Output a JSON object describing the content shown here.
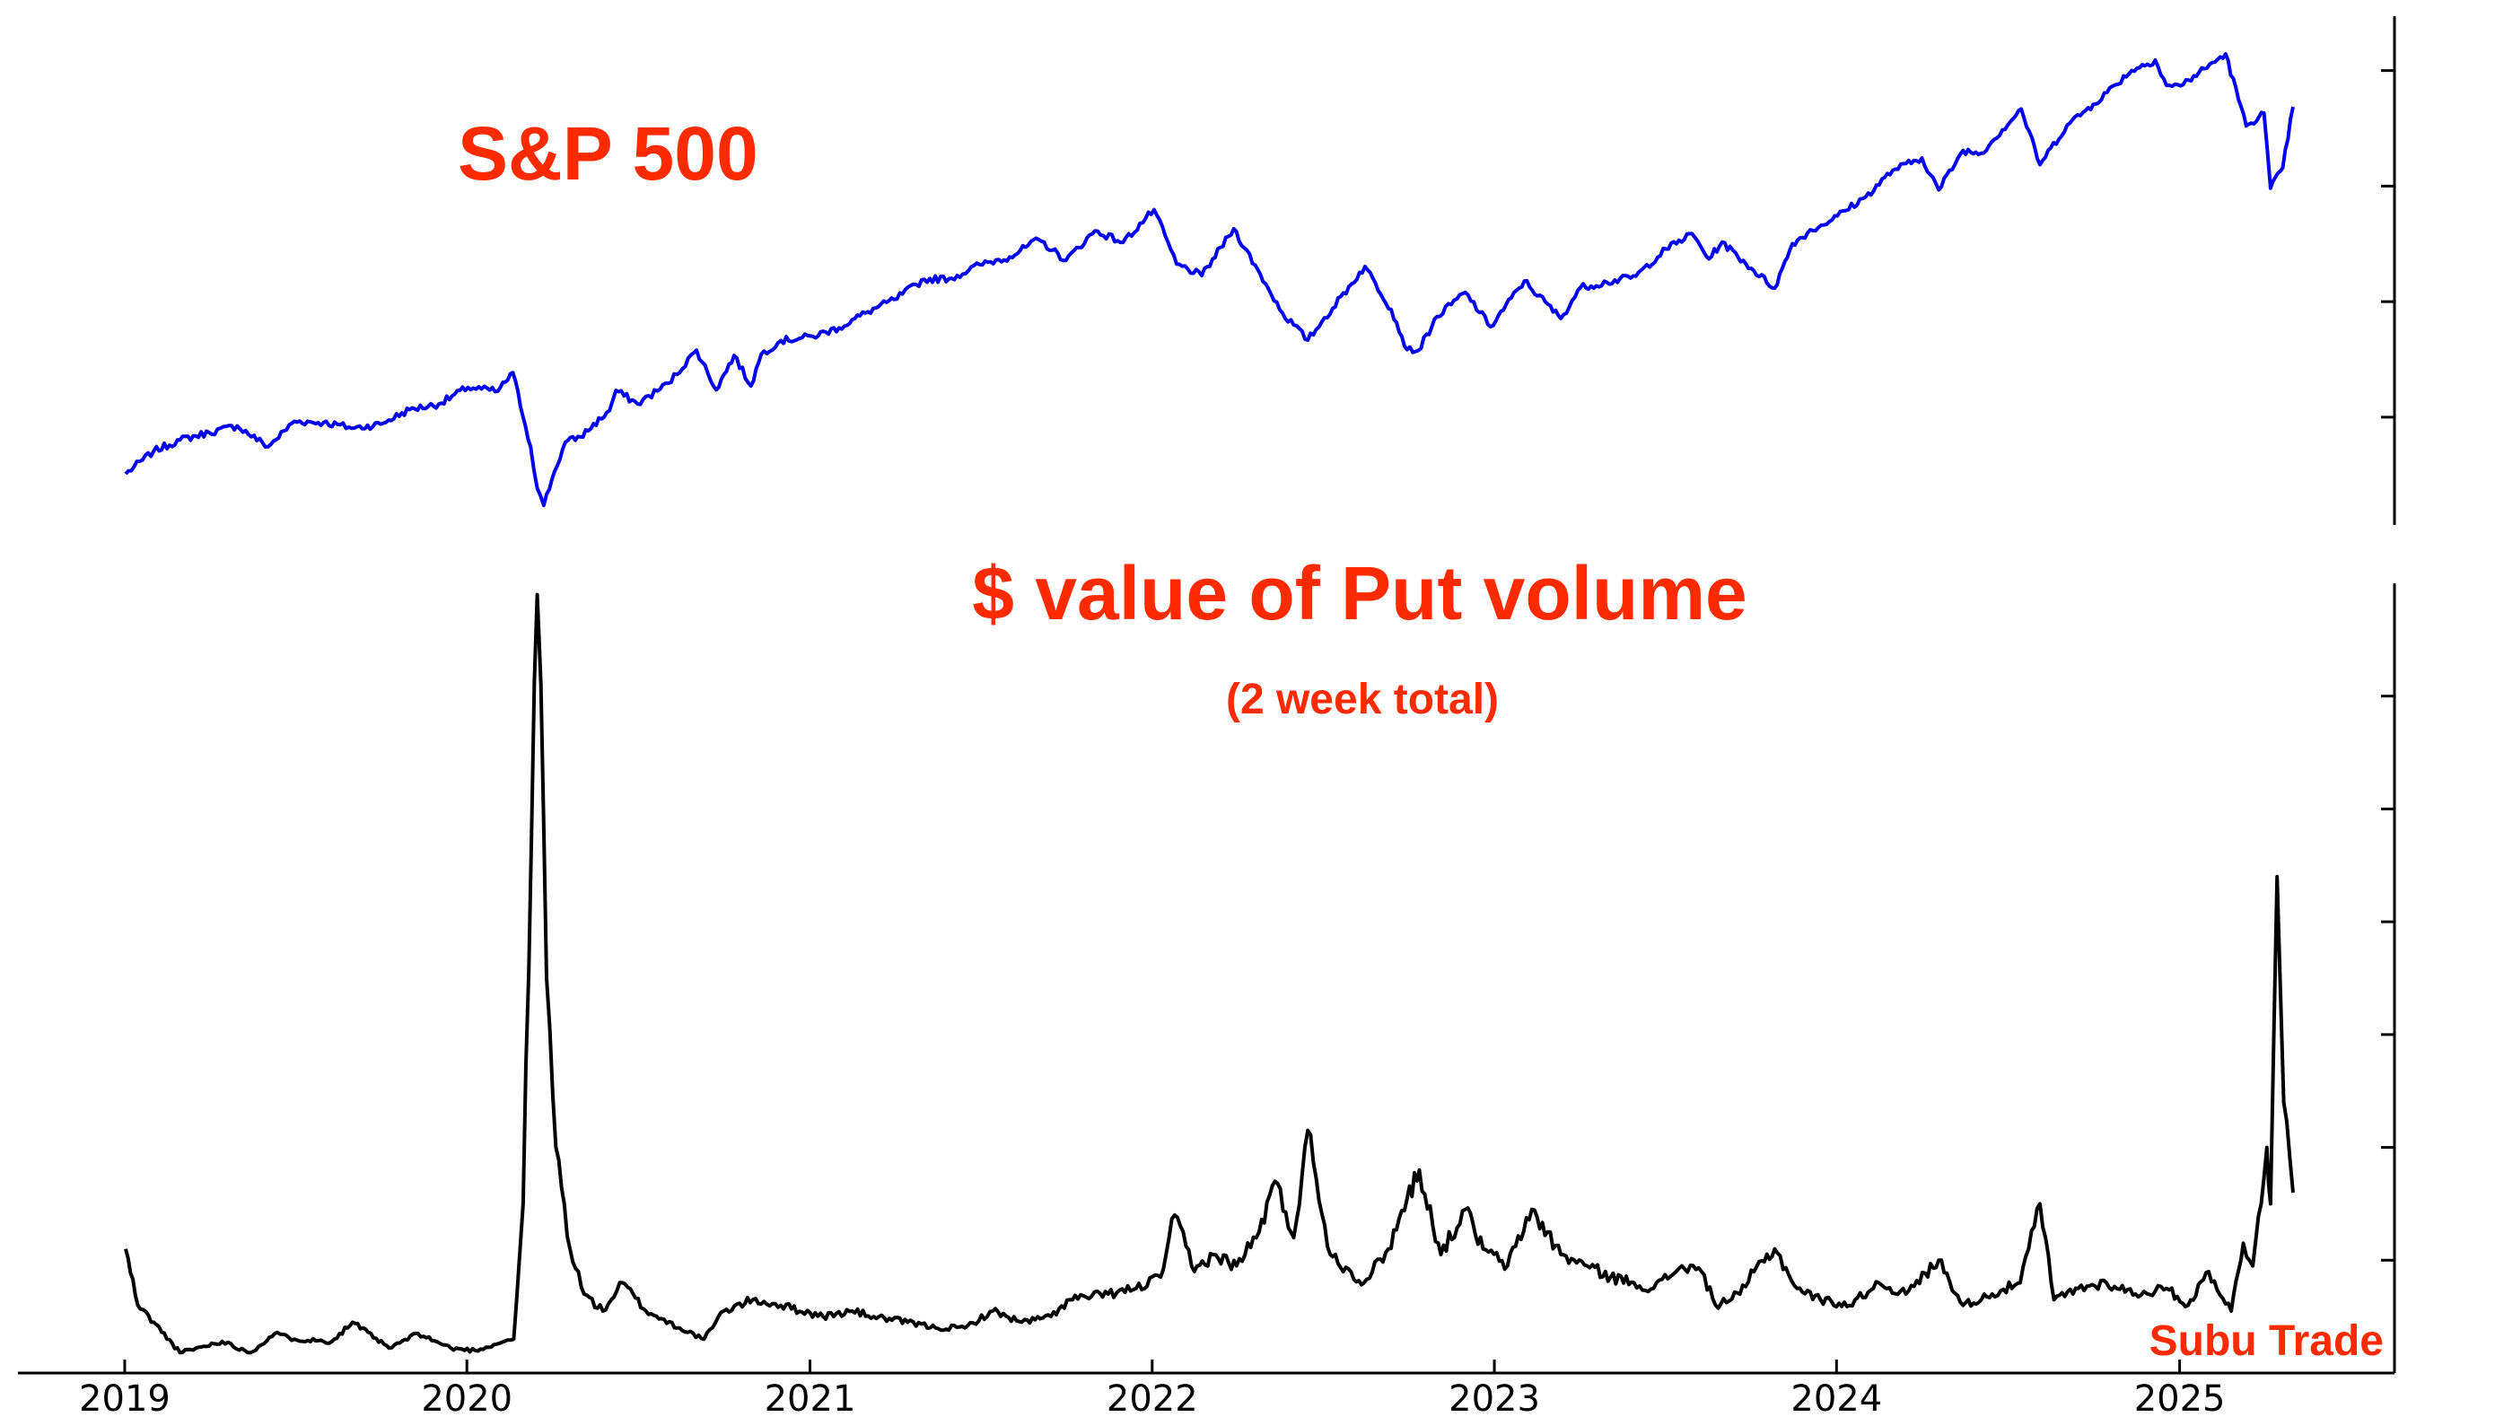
{
  "chart_data": [
    {
      "type": "line",
      "title": "S&P 500",
      "xlabel": "",
      "ylabel": "",
      "x_start": "2019-01-02",
      "x_end": "2025-05-02",
      "ylim": [
        2300,
        6300
      ],
      "grid": false,
      "series": [
        {
          "color": "#0000ee",
          "x": [
            "2019-01-02",
            "2019-02-01",
            "2019-03-01",
            "2019-04-01",
            "2019-05-01",
            "2019-06-03",
            "2019-07-01",
            "2019-08-01",
            "2019-09-03",
            "2019-10-01",
            "2019-11-01",
            "2019-12-02",
            "2020-01-02",
            "2020-02-03",
            "2020-02-19",
            "2020-03-09",
            "2020-03-16",
            "2020-03-23",
            "2020-04-01",
            "2020-04-15",
            "2020-05-01",
            "2020-06-01",
            "2020-06-08",
            "2020-07-01",
            "2020-08-03",
            "2020-09-02",
            "2020-09-23",
            "2020-10-12",
            "2020-10-30",
            "2020-11-10",
            "2020-12-01",
            "2021-01-04",
            "2021-02-01",
            "2021-03-01",
            "2021-04-01",
            "2021-05-03",
            "2021-06-01",
            "2021-07-01",
            "2021-08-02",
            "2021-09-02",
            "2021-10-01",
            "2021-11-01",
            "2021-12-01",
            "2022-01-03",
            "2022-01-27",
            "2022-02-23",
            "2022-03-29",
            "2022-05-02",
            "2022-05-20",
            "2022-06-16",
            "2022-07-01",
            "2022-08-16",
            "2022-09-13",
            "2022-09-30",
            "2022-10-12",
            "2022-11-01",
            "2022-12-01",
            "2022-12-28",
            "2023-02-02",
            "2023-03-13",
            "2023-04-03",
            "2023-05-01",
            "2023-06-01",
            "2023-07-03",
            "2023-07-31",
            "2023-08-18",
            "2023-09-01",
            "2023-10-02",
            "2023-10-27",
            "2023-11-15",
            "2023-12-01",
            "2024-01-02",
            "2024-02-01",
            "2024-03-01",
            "2024-04-01",
            "2024-04-19",
            "2024-05-15",
            "2024-06-03",
            "2024-07-16",
            "2024-08-05",
            "2024-09-03",
            "2024-10-01",
            "2024-11-11",
            "2024-12-06",
            "2024-12-18",
            "2025-01-02",
            "2025-02-19",
            "2025-03-13",
            "2025-04-01",
            "2025-04-08",
            "2025-04-21",
            "2025-05-02"
          ],
          "values": [
            2510,
            2706,
            2803,
            2867,
            2924,
            2744,
            2964,
            2953,
            2906,
            2940,
            3066,
            3113,
            3258,
            3225,
            3386,
            2746,
            2386,
            2237,
            2470,
            2783,
            2830,
            3055,
            3232,
            3115,
            3294,
            3580,
            3237,
            3534,
            3270,
            3545,
            3662,
            3700,
            3773,
            3901,
            4019,
            4192,
            4202,
            4320,
            4387,
            4537,
            4357,
            4613,
            4513,
            4796,
            4326,
            4225,
            4631,
            4155,
            3901,
            3667,
            3825,
            4305,
            3932,
            3585,
            3577,
            3871,
            4080,
            3783,
            4179,
            3855,
            4124,
            4167,
            4221,
            4455,
            4588,
            4370,
            4515,
            4288,
            4117,
            4502,
            4594,
            4742,
            4906,
            5137,
            5243,
            4967,
            5308,
            5283,
            5667,
            5186,
            5528,
            5708,
            6001,
            6090,
            5872,
            5868,
            6144,
            5521,
            5633,
            4982,
            5158,
            5686
          ]
        }
      ]
    },
    {
      "type": "line",
      "title": "$ value of Put volume",
      "subtitle": "(2 week total)",
      "xlabel": "",
      "ylabel": "",
      "x_start": "2019-01-02",
      "x_end": "2025-05-02",
      "x_ticks": [
        "2019",
        "2020",
        "2021",
        "2022",
        "2023",
        "2024",
        "2025"
      ],
      "ylim": [
        0,
        7
      ],
      "grid": false,
      "annotations": [
        "Subu Trade"
      ],
      "series": [
        {
          "color": "#000000",
          "x": [
            "2019-01-02",
            "2019-01-15",
            "2019-02-01",
            "2019-03-01",
            "2019-04-15",
            "2019-05-15",
            "2019-06-10",
            "2019-07-01",
            "2019-08-10",
            "2019-09-01",
            "2019-10-10",
            "2019-11-10",
            "2019-12-15",
            "2020-01-10",
            "2020-02-10",
            "2020-02-20",
            "2020-03-01",
            "2020-03-10",
            "2020-03-16",
            "2020-03-20",
            "2020-03-26",
            "2020-04-05",
            "2020-04-20",
            "2020-05-05",
            "2020-05-25",
            "2020-06-15",
            "2020-07-10",
            "2020-08-15",
            "2020-09-10",
            "2020-10-01",
            "2020-11-01",
            "2020-12-01",
            "2021-01-15",
            "2021-02-15",
            "2021-03-10",
            "2021-04-15",
            "2021-05-15",
            "2021-06-15",
            "2021-07-15",
            "2021-08-15",
            "2021-09-15",
            "2021-10-05",
            "2021-11-15",
            "2021-12-15",
            "2022-01-10",
            "2022-01-25",
            "2022-02-15",
            "2022-03-07",
            "2022-04-01",
            "2022-04-25",
            "2022-05-12",
            "2022-06-01",
            "2022-06-16",
            "2022-07-10",
            "2022-08-15",
            "2022-09-10",
            "2022-09-30",
            "2022-10-13",
            "2022-11-05",
            "2022-12-01",
            "2022-12-20",
            "2023-01-15",
            "2023-02-10",
            "2023-03-13",
            "2023-04-10",
            "2023-05-05",
            "2023-05-30",
            "2023-06-20",
            "2023-07-20",
            "2023-08-10",
            "2023-08-25",
            "2023-09-20",
            "2023-10-05",
            "2023-10-27",
            "2023-11-20",
            "2023-12-15",
            "2024-01-15",
            "2024-02-15",
            "2024-03-15",
            "2024-04-19",
            "2024-05-15",
            "2024-06-15",
            "2024-07-15",
            "2024-08-05",
            "2024-08-20",
            "2024-09-15",
            "2024-10-15",
            "2024-11-15",
            "2024-12-18",
            "2025-01-10",
            "2025-02-01",
            "2025-02-25",
            "2025-03-10",
            "2025-03-20",
            "2025-04-04",
            "2025-04-08",
            "2025-04-15",
            "2025-04-22",
            "2025-05-02"
          ],
          "values": [
            1.1,
            0.6,
            0.45,
            0.18,
            0.28,
            0.18,
            0.35,
            0.3,
            0.28,
            0.45,
            0.22,
            0.35,
            0.22,
            0.2,
            0.28,
            0.3,
            1.5,
            4.8,
            6.9,
            6.1,
            3.5,
            2.0,
            1.1,
            0.7,
            0.55,
            0.8,
            0.55,
            0.4,
            0.3,
            0.55,
            0.65,
            0.6,
            0.5,
            0.55,
            0.5,
            0.45,
            0.4,
            0.4,
            0.55,
            0.45,
            0.5,
            0.65,
            0.7,
            0.75,
            0.85,
            1.4,
            0.9,
            1.05,
            0.95,
            1.25,
            1.7,
            1.2,
            2.15,
            1.05,
            0.8,
            1.1,
            1.55,
            1.8,
            1.05,
            1.45,
            1.1,
            0.95,
            1.45,
            1.05,
            0.95,
            0.85,
            0.8,
            0.75,
            0.95,
            0.9,
            0.6,
            0.7,
            0.9,
            1.1,
            0.75,
            0.65,
            0.6,
            0.8,
            0.7,
            1.0,
            0.6,
            0.7,
            0.8,
            1.5,
            0.65,
            0.75,
            0.8,
            0.7,
            0.75,
            0.6,
            0.9,
            0.55,
            1.15,
            0.95,
            2.0,
            1.5,
            4.4,
            2.4,
            1.6
          ]
        }
      ]
    }
  ]
}
